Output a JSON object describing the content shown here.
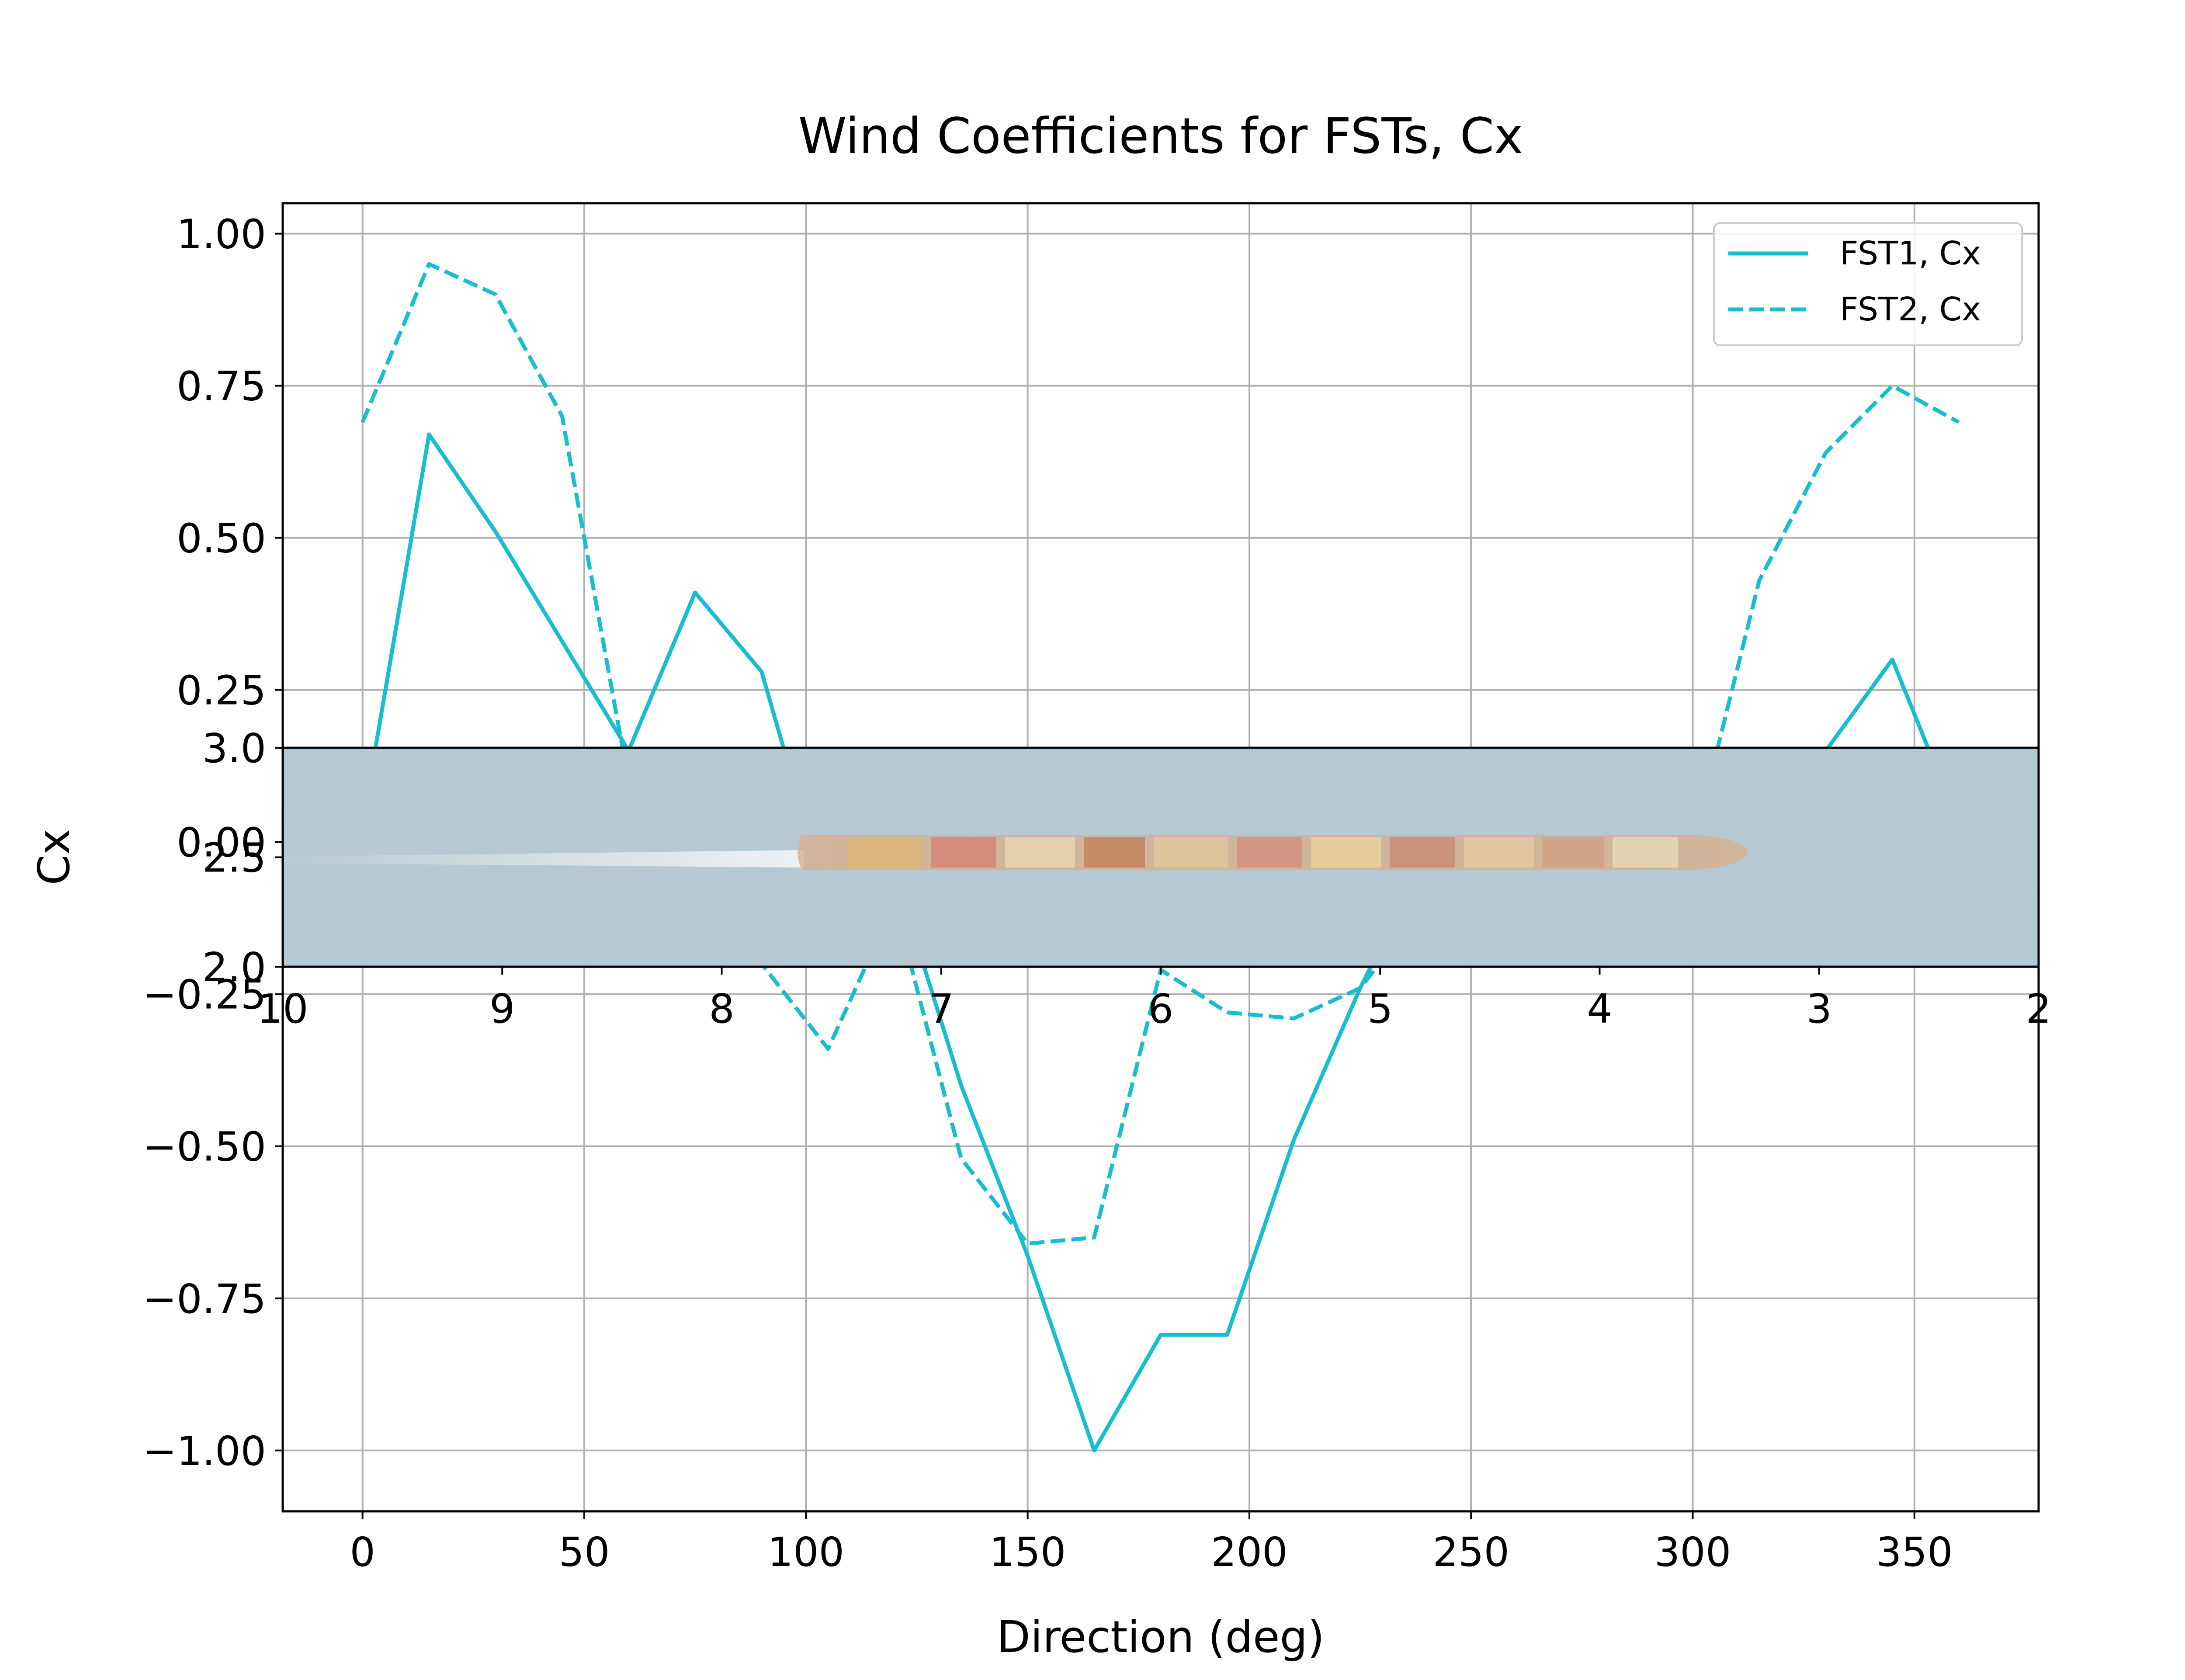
{
  "chart_data": {
    "type": "line",
    "title": "Wind Coefficients for FSTs, Cx",
    "xlabel": "Direction (deg)",
    "ylabel": "Cx",
    "xlim": [
      -18,
      378
    ],
    "ylim": [
      -1.1,
      1.05
    ],
    "x_ticks": [
      0,
      50,
      100,
      150,
      200,
      250,
      300,
      350
    ],
    "x_tick_labels": [
      "0",
      "50",
      "100",
      "150",
      "200",
      "250",
      "300",
      "350"
    ],
    "y_ticks": [
      1.0,
      0.75,
      0.5,
      0.25,
      0.0,
      -0.25,
      -0.5,
      -0.75,
      -1.0
    ],
    "y_tick_labels": [
      "1.00",
      "0.75",
      "0.50",
      "0.25",
      "0.00",
      "−0.25",
      "−0.50",
      "−0.75",
      "−1.00"
    ],
    "grid": true,
    "legend_position": "top-right",
    "series": [
      {
        "name": "FST1, Cx",
        "style": "solid",
        "color": "#17becf",
        "x": [
          0,
          15,
          30,
          45,
          60,
          75,
          90,
          105,
          120,
          135,
          150,
          165,
          180,
          195,
          210,
          225,
          240,
          255,
          270,
          285,
          300,
          315,
          330,
          345,
          360
        ],
        "y": [
          0.03,
          0.67,
          0.51,
          0.33,
          0.15,
          0.41,
          0.28,
          -0.1,
          -0.05,
          -0.4,
          -0.68,
          -1.0,
          -0.81,
          -0.81,
          -0.49,
          -0.24,
          -0.02,
          -0.03,
          0.04,
          -0.02,
          -0.03,
          0.0,
          0.15,
          0.3,
          0.03
        ]
      },
      {
        "name": "FST2, Cx",
        "style": "dashed",
        "color": "#17becf",
        "x": [
          0,
          15,
          30,
          45,
          60,
          75,
          90,
          105,
          120,
          135,
          150,
          165,
          180,
          195,
          210,
          225,
          240,
          255,
          270,
          285,
          300,
          315,
          330,
          345,
          360
        ],
        "y": [
          0.69,
          0.95,
          0.9,
          0.7,
          0.1,
          0.05,
          -0.2,
          -0.34,
          -0.1,
          -0.52,
          -0.66,
          -0.65,
          -0.21,
          -0.28,
          -0.29,
          -0.24,
          -0.1,
          -0.05,
          -0.02,
          -0.05,
          -0.01,
          0.43,
          0.64,
          0.75,
          0.69
        ]
      }
    ],
    "inset": {
      "description_hidden": true,
      "x_ticks": [
        10,
        9,
        8,
        7,
        6,
        5,
        4,
        3,
        2
      ],
      "x_tick_labels": [
        "10",
        "9",
        "8",
        "7",
        "6",
        "5",
        "4",
        "3",
        "2"
      ],
      "xlim": [
        10,
        2
      ],
      "y_ticks": [
        3.0,
        2.5,
        2.0
      ],
      "y_tick_labels": [
        "3.0",
        "2.5",
        "2.0"
      ],
      "ylim": [
        2.0,
        3.0
      ]
    }
  }
}
